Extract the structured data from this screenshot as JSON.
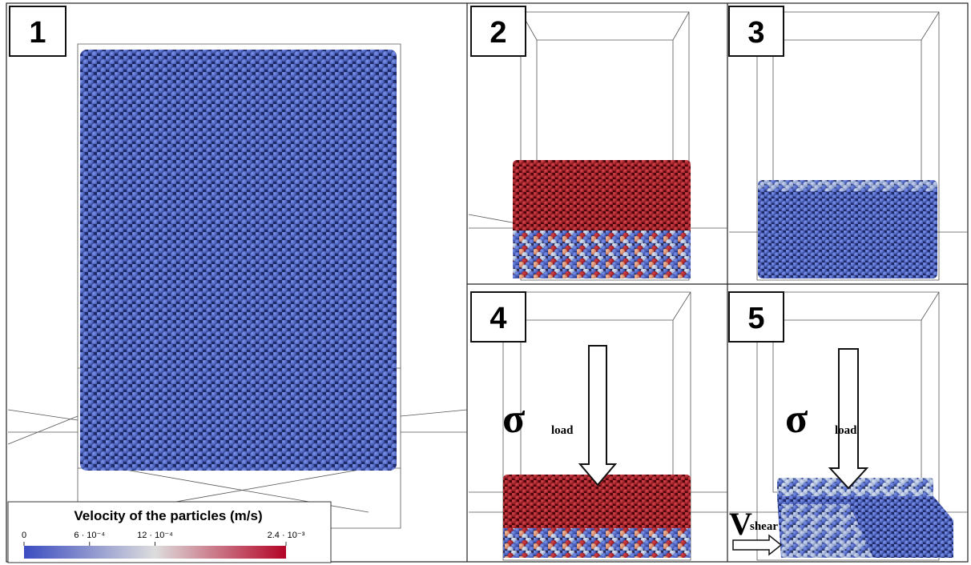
{
  "panels": [
    {
      "label": "1"
    },
    {
      "label": "2"
    },
    {
      "label": "3"
    },
    {
      "label": "4"
    },
    {
      "label": "5"
    }
  ],
  "colorbar": {
    "title": "Velocity of the particles (m/s)",
    "lim": [
      0,
      0.0024
    ],
    "ticks": [
      0,
      {
        "value": 0.0006,
        "label": "6 · 10⁻⁴"
      },
      {
        "value": 0.0012,
        "label": "12 · 10⁻⁴"
      },
      {
        "value": 0.0024,
        "label": "2.4 · 10⁻³"
      }
    ]
  },
  "annotations": {
    "load_symbol": "σ",
    "load_subscript": "load",
    "shear_symbol": "V",
    "shear_subscript": "shear"
  }
}
